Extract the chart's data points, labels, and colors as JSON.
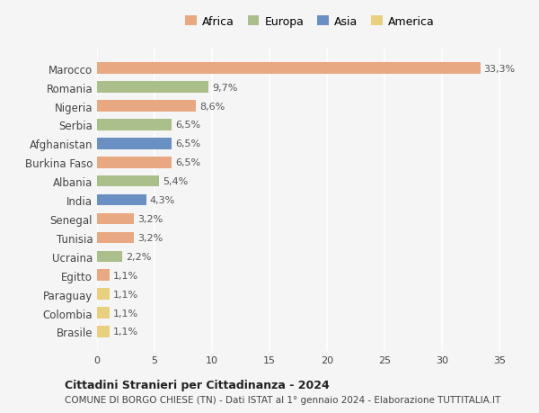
{
  "countries": [
    "Marocco",
    "Romania",
    "Nigeria",
    "Serbia",
    "Afghanistan",
    "Burkina Faso",
    "Albania",
    "India",
    "Senegal",
    "Tunisia",
    "Ucraina",
    "Egitto",
    "Paraguay",
    "Colombia",
    "Brasile"
  ],
  "values": [
    33.3,
    9.7,
    8.6,
    6.5,
    6.5,
    6.5,
    5.4,
    4.3,
    3.2,
    3.2,
    2.2,
    1.1,
    1.1,
    1.1,
    1.1
  ],
  "continents": [
    "Africa",
    "Europa",
    "Africa",
    "Europa",
    "Asia",
    "Africa",
    "Europa",
    "Asia",
    "Africa",
    "Africa",
    "Europa",
    "Africa",
    "America",
    "America",
    "America"
  ],
  "continent_colors": {
    "Africa": "#E8A882",
    "Europa": "#AABF8A",
    "Asia": "#6A8FC2",
    "America": "#E8D080"
  },
  "legend_order": [
    "Africa",
    "Europa",
    "Asia",
    "America"
  ],
  "xlim": [
    0,
    37
  ],
  "xticks": [
    0,
    5,
    10,
    15,
    20,
    25,
    30,
    35
  ],
  "title": "Cittadini Stranieri per Cittadinanza - 2024",
  "subtitle": "COMUNE DI BORGO CHIESE (TN) - Dati ISTAT al 1° gennaio 2024 - Elaborazione TUTTITALIA.IT",
  "background_color": "#f5f5f5",
  "bar_height": 0.6
}
